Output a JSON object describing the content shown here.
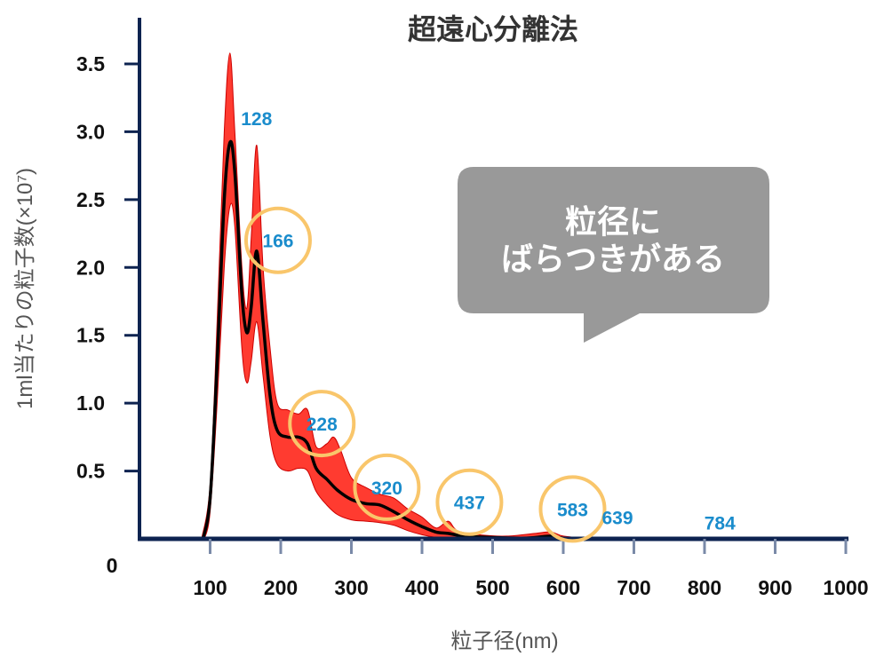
{
  "chart_data": {
    "type": "area",
    "title": "超遠心分離法",
    "xlabel": "粒子径(nm)",
    "ylabel": "1ml当たりの粒子数(×10⁷)",
    "xlim": [
      0,
      1000
    ],
    "ylim": [
      0,
      3.5
    ],
    "x_ticks": [
      "100",
      "200",
      "300",
      "400",
      "500",
      "600",
      "700",
      "800",
      "900",
      "1000"
    ],
    "y_ticks": [
      "3.5",
      "3.0",
      "2.5",
      "2.0",
      "1.5",
      "1.0",
      "0.5"
    ],
    "origin_label": "0",
    "series": [
      {
        "role": "mean",
        "color": "#000000",
        "points": [
          [
            90,
            0
          ],
          [
            100,
            0.3
          ],
          [
            110,
            1.3
          ],
          [
            120,
            2.5
          ],
          [
            128,
            2.92
          ],
          [
            135,
            2.7
          ],
          [
            145,
            1.8
          ],
          [
            152,
            1.52
          ],
          [
            158,
            1.7
          ],
          [
            166,
            2.12
          ],
          [
            175,
            1.6
          ],
          [
            185,
            1.05
          ],
          [
            195,
            0.8
          ],
          [
            210,
            0.75
          ],
          [
            225,
            0.75
          ],
          [
            238,
            0.7
          ],
          [
            250,
            0.52
          ],
          [
            265,
            0.44
          ],
          [
            280,
            0.36
          ],
          [
            300,
            0.29
          ],
          [
            320,
            0.26
          ],
          [
            340,
            0.25
          ],
          [
            360,
            0.2
          ],
          [
            380,
            0.14
          ],
          [
            400,
            0.09
          ],
          [
            420,
            0.05
          ],
          [
            437,
            0.04
          ],
          [
            460,
            0.02
          ],
          [
            500,
            0.01
          ],
          [
            540,
            0.005
          ],
          [
            560,
            0.01
          ],
          [
            583,
            0.02
          ],
          [
            600,
            0.005
          ],
          [
            640,
            0.0
          ]
        ]
      },
      {
        "role": "upper",
        "color": "#ff3b30",
        "points": [
          [
            88,
            0
          ],
          [
            100,
            0.4
          ],
          [
            110,
            1.6
          ],
          [
            120,
            3.0
          ],
          [
            128,
            3.58
          ],
          [
            135,
            3.0
          ],
          [
            145,
            2.0
          ],
          [
            152,
            1.7
          ],
          [
            158,
            2.2
          ],
          [
            166,
            2.9
          ],
          [
            175,
            2.0
          ],
          [
            185,
            1.4
          ],
          [
            195,
            1.0
          ],
          [
            210,
            0.95
          ],
          [
            225,
            0.92
          ],
          [
            238,
            0.95
          ],
          [
            250,
            0.68
          ],
          [
            265,
            0.7
          ],
          [
            275,
            0.75
          ],
          [
            285,
            0.65
          ],
          [
            300,
            0.45
          ],
          [
            320,
            0.38
          ],
          [
            340,
            0.33
          ],
          [
            360,
            0.3
          ],
          [
            380,
            0.22
          ],
          [
            400,
            0.16
          ],
          [
            420,
            0.08
          ],
          [
            437,
            0.13
          ],
          [
            450,
            0.06
          ],
          [
            480,
            0.03
          ],
          [
            520,
            0.02
          ],
          [
            560,
            0.04
          ],
          [
            583,
            0.05
          ],
          [
            600,
            0.02
          ],
          [
            640,
            0.0
          ]
        ]
      },
      {
        "role": "lower",
        "color": "#ff3b30",
        "points": [
          [
            92,
            0
          ],
          [
            100,
            0.2
          ],
          [
            110,
            1.0
          ],
          [
            120,
            2.0
          ],
          [
            128,
            2.45
          ],
          [
            135,
            2.3
          ],
          [
            145,
            1.4
          ],
          [
            152,
            1.15
          ],
          [
            158,
            1.3
          ],
          [
            166,
            1.6
          ],
          [
            175,
            1.2
          ],
          [
            185,
            0.75
          ],
          [
            195,
            0.55
          ],
          [
            210,
            0.5
          ],
          [
            225,
            0.52
          ],
          [
            238,
            0.5
          ],
          [
            250,
            0.35
          ],
          [
            265,
            0.25
          ],
          [
            280,
            0.18
          ],
          [
            300,
            0.14
          ],
          [
            320,
            0.13
          ],
          [
            340,
            0.12
          ],
          [
            360,
            0.1
          ],
          [
            380,
            0.06
          ],
          [
            400,
            0.03
          ],
          [
            420,
            0.01
          ],
          [
            437,
            0.0
          ],
          [
            640,
            0.0
          ]
        ]
      }
    ],
    "peak_labels": [
      {
        "value": "128",
        "x": 128,
        "y": 3.1,
        "circled": false
      },
      {
        "value": "166",
        "x": 166,
        "y": 2.2,
        "circled": true
      },
      {
        "value": "228",
        "x": 228,
        "y": 0.85,
        "circled": true
      },
      {
        "value": "320",
        "x": 320,
        "y": 0.38,
        "circled": true
      },
      {
        "value": "437",
        "x": 437,
        "y": 0.27,
        "circled": true
      },
      {
        "value": "583",
        "x": 583,
        "y": 0.22,
        "circled": true
      },
      {
        "value": "639",
        "x": 639,
        "y": 0.16,
        "circled": false
      },
      {
        "value": "784",
        "x": 784,
        "y": 0.12,
        "circled": false
      }
    ],
    "callout": {
      "line1": "粒径に",
      "line2": "ばらつきがある",
      "background": "#999999"
    },
    "colors": {
      "axis": "#0d2350",
      "band": "#ff3b30",
      "band_edge": "#cc0000",
      "mean_line": "#000000",
      "circle": "#f9c66b",
      "peak_label": "#1a8ccc"
    }
  }
}
